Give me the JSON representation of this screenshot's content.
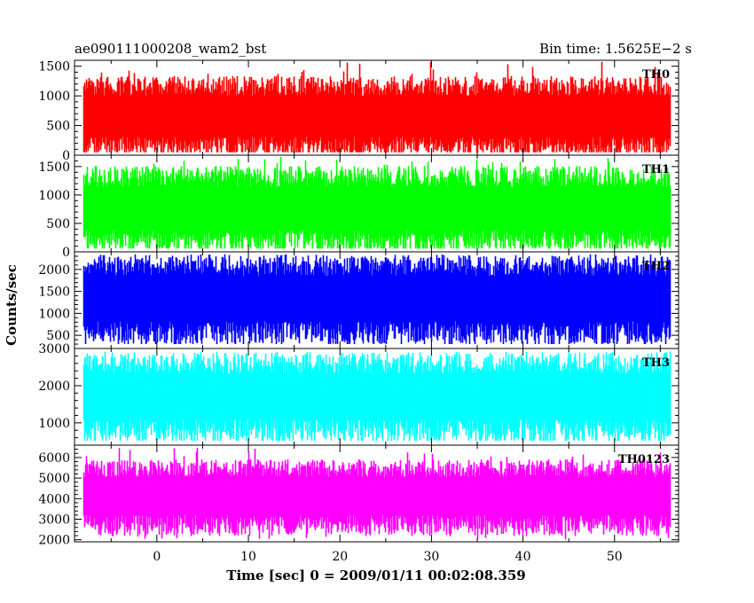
{
  "header": {
    "title": "ae090111000208_wam2_bst",
    "bin_time": "Bin time: 1.5625E−2 s"
  },
  "chart_data": {
    "type": "line",
    "xlabel": "Time [sec] 0 = 2009/01/11 00:02:08.359",
    "ylabel": "Counts/sec",
    "xlim": [
      -9,
      57
    ],
    "x_range": [
      -8,
      56
    ],
    "x_ticks": [
      0,
      10,
      20,
      30,
      40,
      50
    ],
    "bin_time_s": 0.015625,
    "grid": false,
    "legend": "none",
    "panels": [
      {
        "name": "TH0",
        "color": "#ff0000",
        "ylim": [
          0,
          1600
        ],
        "y_ticks": [
          0,
          500,
          1000,
          1500
        ],
        "mean": 620,
        "typical_low": 200,
        "typical_high": 1100,
        "min": 50,
        "max": 1580
      },
      {
        "name": "TH1",
        "color": "#00ff00",
        "ylim": [
          0,
          1700
        ],
        "y_ticks": [
          0,
          500,
          1000,
          1500
        ],
        "mean": 720,
        "typical_low": 250,
        "typical_high": 1250,
        "min": 60,
        "max": 1680
      },
      {
        "name": "TH2",
        "color": "#0000ff",
        "ylim": [
          200,
          2400
        ],
        "y_ticks": [
          500,
          1000,
          1500,
          2000
        ],
        "mean": 1300,
        "typical_low": 650,
        "typical_high": 2000,
        "min": 300,
        "max": 2350
      },
      {
        "name": "TH3",
        "color": "#00ffff",
        "ylim": [
          400,
          3000
        ],
        "y_ticks": [
          1000,
          2000,
          3000
        ],
        "mean": 1650,
        "typical_low": 900,
        "typical_high": 2500,
        "min": 520,
        "max": 2950
      },
      {
        "name": "TH0123",
        "color": "#ff00ff",
        "ylim": [
          1900,
          6600
        ],
        "y_ticks": [
          2000,
          3000,
          4000,
          5000,
          6000
        ],
        "mean": 4050,
        "typical_low": 2900,
        "typical_high": 5300,
        "min": 2000,
        "max": 6500
      }
    ]
  }
}
